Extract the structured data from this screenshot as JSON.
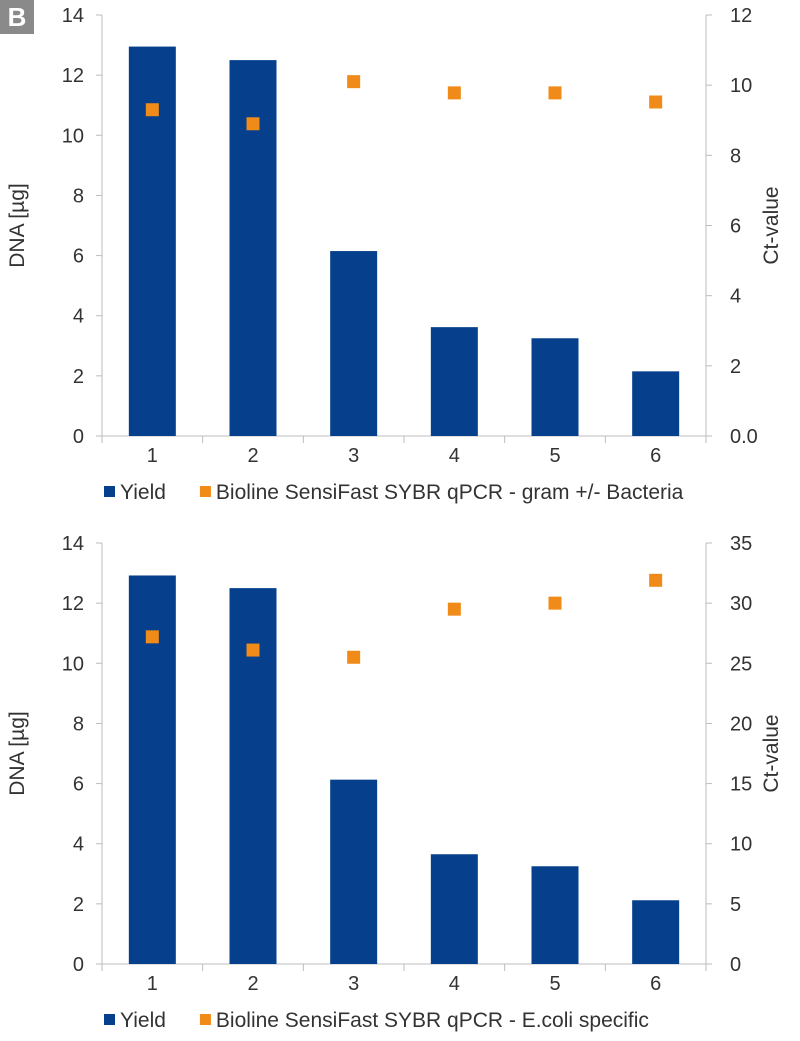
{
  "panel_label": "B",
  "colors": {
    "yield": "#06408c",
    "ct": "#f08a18",
    "axis": "#bdbdbd",
    "text": "#333333"
  },
  "chart_data": [
    {
      "type": "bar",
      "categories": [
        "1",
        "2",
        "3",
        "4",
        "5",
        "6"
      ],
      "ylabel": "DNA [µg]",
      "y2label": "Ct-value",
      "ylim": [
        0,
        14
      ],
      "yticks": [
        "0",
        "2",
        "4",
        "6",
        "8",
        "10",
        "12",
        "14"
      ],
      "y2lim": [
        0,
        12
      ],
      "y2ticks": [
        "0.0",
        "2",
        "4",
        "6",
        "8",
        "10",
        "12"
      ],
      "series": [
        {
          "name": "Yield",
          "kind": "bar",
          "axis": "left",
          "values": [
            12.95,
            12.5,
            6.15,
            3.62,
            3.25,
            2.15
          ]
        },
        {
          "name": "Bioline SensiFast SYBR qPCR - gram +/- Bacteria",
          "kind": "scatter",
          "axis": "right",
          "values": [
            9.3,
            8.9,
            10.1,
            9.78,
            9.78,
            9.52
          ]
        }
      ],
      "legend": "bottom"
    },
    {
      "type": "bar",
      "categories": [
        "1",
        "2",
        "3",
        "4",
        "5",
        "6"
      ],
      "ylabel": "DNA [µg]",
      "y2label": "Ct-value",
      "ylim": [
        0,
        14
      ],
      "yticks": [
        "0",
        "2",
        "4",
        "6",
        "8",
        "10",
        "12",
        "14"
      ],
      "y2lim": [
        0,
        35
      ],
      "y2ticks": [
        "0",
        "5",
        "10",
        "15",
        "20",
        "25",
        "30",
        "35"
      ],
      "series": [
        {
          "name": "Yield",
          "kind": "bar",
          "axis": "left",
          "values": [
            12.92,
            12.5,
            6.13,
            3.65,
            3.25,
            2.12
          ]
        },
        {
          "name": "Bioline SensiFast SYBR qPCR - E.coli specific",
          "kind": "scatter",
          "axis": "right",
          "values": [
            27.2,
            26.1,
            25.5,
            29.5,
            30.0,
            31.9
          ]
        }
      ],
      "legend": "bottom"
    }
  ]
}
